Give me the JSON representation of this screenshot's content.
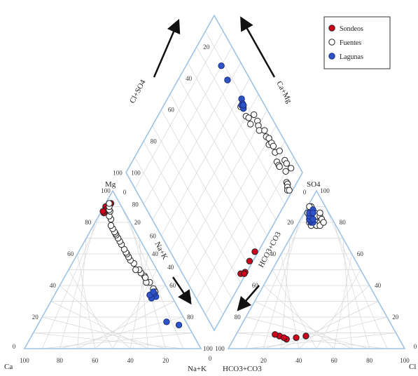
{
  "chart_data": {
    "type": "scatter",
    "diagram": "piper",
    "vertex_labels": {
      "cation_left": "Ca",
      "cation_top": "Mg",
      "cation_right": "Na+K",
      "anion_left": "HCO3+CO3",
      "anion_top": "SO4",
      "anion_right": "Cl"
    },
    "diamond_labels": {
      "upper_left": "Cl+SO4",
      "upper_right": "Ca+Mg",
      "lower_left": "Na+K",
      "lower_right": "HCO3+CO3"
    },
    "tick_values": [
      "20",
      "40",
      "60",
      "80",
      "100"
    ],
    "zero_label": "0",
    "grid": true,
    "legend_position": "top-right",
    "series": [
      {
        "name": "Sondeos",
        "marker_fill": "#d0021b",
        "marker_edge": "#222222",
        "cation": [
          [
            1,
            90
          ],
          [
            2,
            86
          ],
          [
            3,
            92
          ],
          [
            2,
            88
          ],
          [
            1,
            87
          ]
        ],
        "anion": [
          [
            30,
            6
          ],
          [
            35,
            7
          ],
          [
            25,
            8
          ],
          [
            40,
            8
          ],
          [
            28,
            7
          ],
          [
            22,
            9
          ]
        ]
      },
      {
        "name": "Fuentes",
        "marker_fill": "#ffffff",
        "marker_edge": "#222222",
        "cation": [
          [
            55,
            37
          ],
          [
            54,
            38
          ],
          [
            50,
            42
          ],
          [
            48,
            42
          ],
          [
            45,
            46
          ],
          [
            42,
            48
          ],
          [
            40,
            50
          ],
          [
            38,
            50
          ],
          [
            35,
            54
          ],
          [
            32,
            56
          ],
          [
            30,
            58
          ],
          [
            28,
            60
          ],
          [
            27,
            61
          ],
          [
            25,
            63
          ],
          [
            22,
            66
          ],
          [
            20,
            68
          ],
          [
            18,
            70
          ],
          [
            16,
            72
          ],
          [
            15,
            73
          ],
          [
            14,
            74
          ],
          [
            12,
            76
          ],
          [
            10,
            78
          ],
          [
            8,
            82
          ],
          [
            6,
            84
          ],
          [
            5,
            87
          ],
          [
            4,
            88
          ],
          [
            3,
            90
          ],
          [
            2,
            92
          ],
          [
            56,
            36
          ],
          [
            46,
            45
          ]
        ],
        "anion": [
          [
            4,
            84
          ],
          [
            5,
            82
          ],
          [
            6,
            80
          ],
          [
            7,
            80
          ],
          [
            8,
            78
          ],
          [
            9,
            82
          ],
          [
            10,
            80
          ],
          [
            11,
            78
          ],
          [
            12,
            80
          ],
          [
            3,
            88
          ],
          [
            2,
            90
          ],
          [
            4,
            86
          ],
          [
            6,
            86
          ],
          [
            8,
            84
          ],
          [
            13,
            78
          ],
          [
            10,
            84
          ],
          [
            3,
            86
          ],
          [
            5,
            84
          ],
          [
            7,
            82
          ],
          [
            12,
            82
          ],
          [
            14,
            80
          ],
          [
            1,
            90
          ],
          [
            9,
            86
          ],
          [
            2,
            86
          ]
        ]
      },
      {
        "name": "Lagunas",
        "marker_fill": "#2e52c8",
        "marker_edge": "#1a2e80",
        "cation": [
          [
            80,
            15
          ],
          [
            72,
            17
          ],
          [
            58,
            33
          ],
          [
            56,
            32
          ],
          [
            56,
            35
          ],
          [
            54,
            34
          ],
          [
            55,
            36
          ]
        ],
        "anion": [
          [
            6,
            82
          ],
          [
            7,
            80
          ],
          [
            5,
            84
          ],
          [
            8,
            80
          ],
          [
            6,
            81
          ],
          [
            5,
            82
          ],
          [
            4,
            84
          ],
          [
            7,
            82
          ],
          [
            3,
            86
          ],
          [
            4,
            88
          ],
          [
            5,
            86
          ]
        ]
      }
    ]
  }
}
